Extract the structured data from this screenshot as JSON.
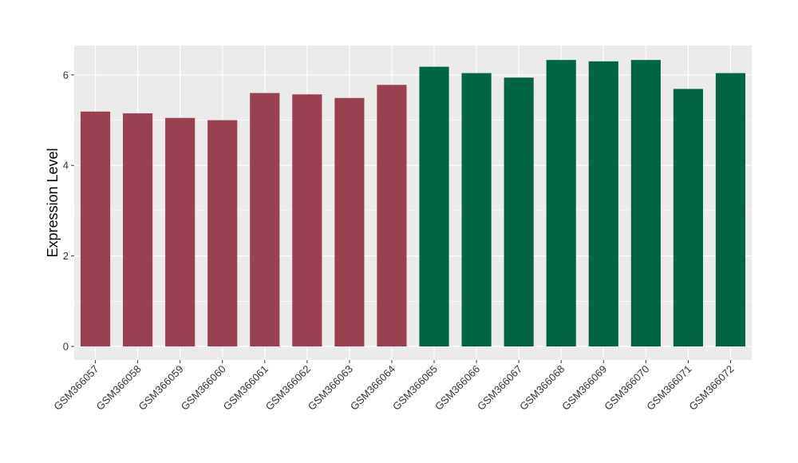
{
  "chart_data": {
    "type": "bar",
    "title": "",
    "xlabel": "",
    "ylabel": "Expression Level",
    "ylim": [
      -0.3,
      6.65
    ],
    "yticks": [
      0,
      2,
      4,
      6
    ],
    "ytick_labels": [
      "0",
      "2",
      "4",
      "6"
    ],
    "grid": true,
    "legend": "none",
    "categories": [
      "GSM366057",
      "GSM366058",
      "GSM366059",
      "GSM366060",
      "GSM366061",
      "GSM366062",
      "GSM366063",
      "GSM366064",
      "GSM366065",
      "GSM366066",
      "GSM366067",
      "GSM366068",
      "GSM366069",
      "GSM366070",
      "GSM366071",
      "GSM366072"
    ],
    "values": [
      5.19,
      5.15,
      5.05,
      5.0,
      5.6,
      5.57,
      5.49,
      5.78,
      6.18,
      6.04,
      5.94,
      6.33,
      6.3,
      6.33,
      5.69,
      6.04
    ],
    "bar_colors": [
      "#9a4150",
      "#9a4150",
      "#9a4150",
      "#9a4150",
      "#9a4150",
      "#9a4150",
      "#9a4150",
      "#9a4150",
      "#006543",
      "#006543",
      "#006543",
      "#006543",
      "#006543",
      "#006543",
      "#006543",
      "#006543"
    ],
    "panel_background": "#ebebeb",
    "grid_color": "#ffffff"
  }
}
